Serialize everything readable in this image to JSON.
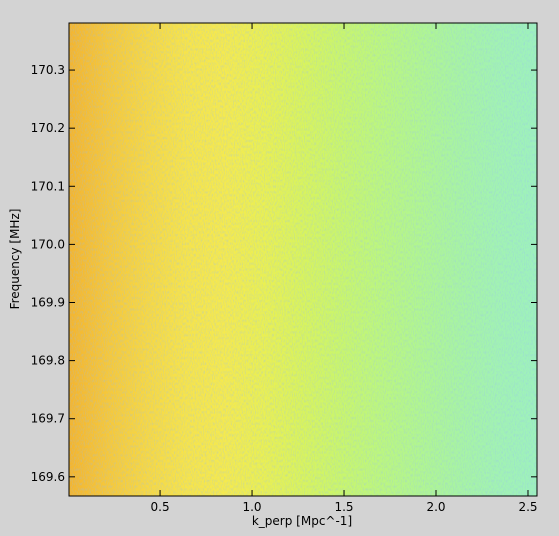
{
  "chart_data": {
    "type": "heatmap",
    "xlabel": "k_perp [Mpc^-1]",
    "ylabel": "Frequency [MHz]",
    "xlim": [
      0.005,
      2.549
    ],
    "ylim": [
      169.567,
      170.381
    ],
    "xticks": [
      0.5,
      {
        "value": 1,
        "label": "1.0"
      },
      1.5,
      {
        "value": 2,
        "label": "2.0"
      },
      2.5
    ],
    "yticks": [
      169.6,
      169.7,
      169.8,
      169.9,
      {
        "value": 170,
        "label": "170.0"
      },
      170.1,
      170.2,
      170.3
    ],
    "colors": [
      "#f4b52e",
      "#f6c83a",
      "#f7d843",
      "#f7e44a",
      "#f5ea4e",
      "#eaf052",
      "#d9f45c",
      "#c9f66c",
      "#bcf77e",
      "#b1f690",
      "#a8f4a2",
      "#a2f3b2",
      "#9ef2bc"
    ]
  }
}
